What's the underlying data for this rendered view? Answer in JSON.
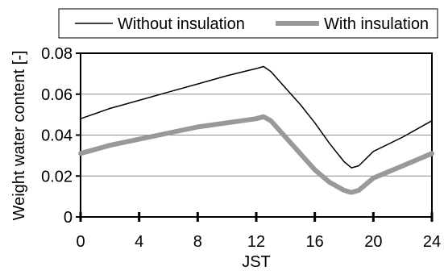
{
  "chart_data": {
    "type": "line",
    "title": "",
    "xlabel": "JST",
    "ylabel": "Weight water content [-]",
    "xlim": [
      0,
      24
    ],
    "ylim": [
      0,
      0.08
    ],
    "x_ticks": [
      0,
      4,
      8,
      12,
      16,
      20,
      24
    ],
    "x_tick_labels": [
      "0",
      "4",
      "8",
      "12",
      "16",
      "20",
      "24"
    ],
    "y_ticks": [
      0,
      0.02,
      0.04,
      0.06,
      0.08
    ],
    "y_tick_labels": [
      "0",
      "0.02",
      "0.04",
      "0.06",
      "0.08"
    ],
    "grid": "horizontal",
    "legend_position": "top",
    "series": [
      {
        "name": "Without insulation",
        "color": "#000000",
        "x": [
          0,
          2,
          4,
          6,
          8,
          10,
          12,
          12.5,
          13,
          14,
          15,
          16,
          17,
          18,
          18.5,
          19,
          20,
          22,
          24
        ],
        "y": [
          0.048,
          0.053,
          0.057,
          0.061,
          0.065,
          0.069,
          0.0725,
          0.0735,
          0.071,
          0.063,
          0.055,
          0.046,
          0.036,
          0.027,
          0.024,
          0.025,
          0.032,
          0.039,
          0.047
        ]
      },
      {
        "name": "With insulation",
        "color": "#999999",
        "x": [
          0,
          2,
          4,
          6,
          8,
          10,
          12,
          12.5,
          13,
          14,
          15,
          16,
          17,
          18,
          18.5,
          19,
          20,
          22,
          24
        ],
        "y": [
          0.031,
          0.035,
          0.038,
          0.041,
          0.044,
          0.046,
          0.048,
          0.049,
          0.047,
          0.039,
          0.031,
          0.023,
          0.017,
          0.013,
          0.012,
          0.013,
          0.019,
          0.025,
          0.031
        ]
      }
    ]
  }
}
